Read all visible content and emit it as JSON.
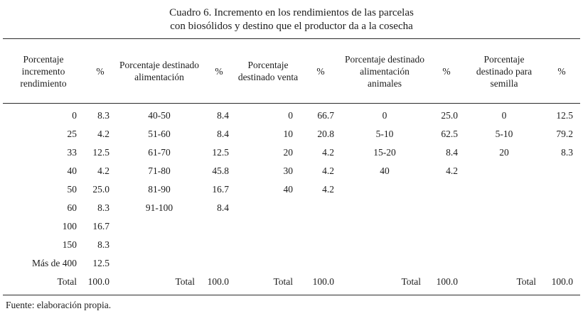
{
  "title": {
    "line1": "Cuadro 6. Incremento en los rendimientos de las parcelas",
    "line2": "con biosólidos y destino que el productor da a la cosecha"
  },
  "table": {
    "columns": [
      "Porcentaje incremento rendimiento",
      "%",
      "Porcentaje destinado alimentación",
      "%",
      "Porcentaje destinado venta",
      "%",
      "Porcentaje destinado alimentación animales",
      "%",
      "Porcentaje destinado para semilla",
      "%"
    ],
    "rows": [
      [
        "0",
        "8.3",
        "40-50",
        "8.4",
        "0",
        "66.7",
        "0",
        "25.0",
        "0",
        "12.5"
      ],
      [
        "25",
        "4.2",
        "51-60",
        "8.4",
        "10",
        "20.8",
        "5-10",
        "62.5",
        "5-10",
        "79.2"
      ],
      [
        "33",
        "12.5",
        "61-70",
        "12.5",
        "20",
        "4.2",
        "15-20",
        "8.4",
        "20",
        "8.3"
      ],
      [
        "40",
        "4.2",
        "71-80",
        "45.8",
        "30",
        "4.2",
        "40",
        "4.2",
        "",
        ""
      ],
      [
        "50",
        "25.0",
        "81-90",
        "16.7",
        "40",
        "4.2",
        "",
        "",
        "",
        ""
      ],
      [
        "60",
        "8.3",
        "91-100",
        "8.4",
        "",
        "",
        "",
        "",
        "",
        ""
      ],
      [
        "100",
        "16.7",
        "",
        "",
        "",
        "",
        "",
        "",
        "",
        ""
      ],
      [
        "150",
        "8.3",
        "",
        "",
        "",
        "",
        "",
        "",
        "",
        ""
      ],
      [
        "Más de 400",
        "12.5",
        "",
        "",
        "",
        "",
        "",
        "",
        "",
        ""
      ],
      [
        "Total",
        "100.0",
        "Total",
        "100.0",
        "Total",
        "100.0",
        "Total",
        "100.0",
        "Total",
        "100.0"
      ]
    ]
  },
  "footer": {
    "source": "Fuente: elaboración propia."
  },
  "colors": {
    "text": "#1c1c1c",
    "rule": "#2b2b2b",
    "background": "#ffffff"
  }
}
